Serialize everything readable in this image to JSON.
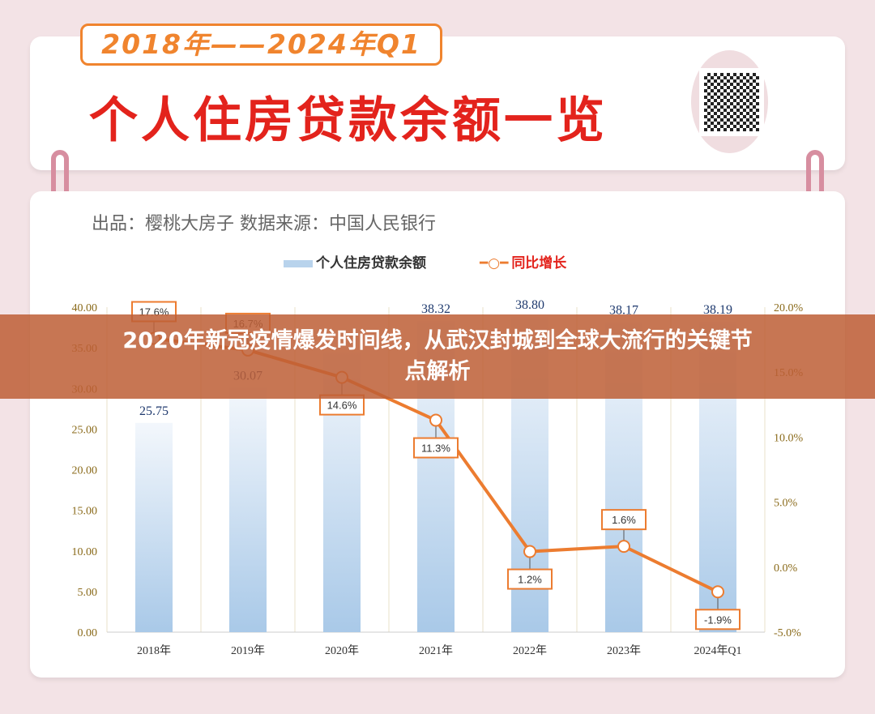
{
  "header": {
    "period": "2018年——2024年Q1",
    "title": "个人住房贷款余额一览",
    "qr_icon": "qr-code-icon"
  },
  "source": "出品：樱桃大房子  数据来源：中国人民银行",
  "banner": {
    "line1": "2020年新冠疫情爆发时间线，从武汉封城到全球大流行的关键节",
    "line2": "点解析"
  },
  "colors": {
    "bar": "#b8d3ec",
    "line": "#ec7c30",
    "accent": "#e3231c"
  },
  "chart_data": {
    "type": "bar+line",
    "categories": [
      "2018年",
      "2019年",
      "2020年",
      "2021年",
      "2022年",
      "2023年",
      "2024年Q1"
    ],
    "series": [
      {
        "name": "个人住房贷款余额",
        "type": "bar",
        "axis": "left",
        "values": [
          25.75,
          30.07,
          34.44,
          38.32,
          38.8,
          38.17,
          38.19
        ],
        "labels": [
          "25.75",
          "30.07",
          "",
          "38.32",
          "38.80",
          "38.17",
          "38.19"
        ]
      },
      {
        "name": "同比增长",
        "type": "line",
        "axis": "right",
        "values": [
          17.6,
          16.7,
          14.6,
          11.3,
          1.2,
          1.6,
          -1.9
        ],
        "labels": [
          "17.6%",
          "16.7%",
          "14.6%",
          "11.3%",
          "1.2%",
          "1.6%",
          "-1.9%"
        ]
      }
    ],
    "left_axis": {
      "range": [
        0,
        40
      ],
      "ticks": [
        "0.00",
        "5.00",
        "10.00",
        "15.00",
        "20.00",
        "25.00",
        "30.00",
        "35.00",
        "40.00"
      ]
    },
    "right_axis": {
      "range": [
        -5,
        20
      ],
      "ticks": [
        "-5.0%",
        "0.0%",
        "5.0%",
        "10.0%",
        "15.0%",
        "20.0%"
      ]
    },
    "legend": "top-center",
    "grid": "vertical"
  }
}
